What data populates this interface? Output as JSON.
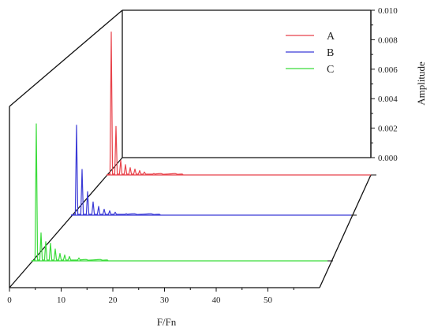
{
  "chart_data": {
    "type": "line",
    "variant": "3d-waterfall",
    "title": "",
    "xlabel": "F/Fn",
    "zlabel": "Amplitude",
    "xlim": [
      0,
      60
    ],
    "zlim": [
      0,
      0.01
    ],
    "x_ticks": [
      "0",
      "10",
      "20",
      "30",
      "40",
      "50"
    ],
    "z_ticks": [
      "0.000",
      "0.002",
      "0.004",
      "0.006",
      "0.008",
      "0.010"
    ],
    "grid": false,
    "legend_position": "top-right",
    "series": [
      {
        "name": "A",
        "color": "#e8424a",
        "peaks": [
          [
            1.0,
            0.0097
          ],
          [
            2.0,
            0.0033
          ],
          [
            3.0,
            0.001
          ],
          [
            4.0,
            0.0007
          ],
          [
            5.0,
            0.0005
          ],
          [
            6.0,
            0.0004
          ],
          [
            7.0,
            0.0003
          ],
          [
            8.0,
            0.0002
          ],
          [
            10.0,
            0.0001
          ]
        ]
      },
      {
        "name": "B",
        "color": "#3a3ad6",
        "peaks": [
          [
            1.0,
            0.0061
          ],
          [
            2.0,
            0.0031
          ],
          [
            3.0,
            0.0016
          ],
          [
            4.0,
            0.0009
          ],
          [
            5.0,
            0.0006
          ],
          [
            6.0,
            0.0004
          ],
          [
            7.0,
            0.0003
          ],
          [
            8.0,
            0.0002
          ],
          [
            10.0,
            0.0001
          ]
        ]
      },
      {
        "name": "C",
        "color": "#3bdc3b",
        "peaks": [
          [
            1.0,
            0.0093
          ],
          [
            2.0,
            0.0019
          ],
          [
            3.0,
            0.0013
          ],
          [
            4.0,
            0.0012
          ],
          [
            5.0,
            0.0008
          ],
          [
            6.0,
            0.0005
          ],
          [
            7.0,
            0.0004
          ],
          [
            8.0,
            0.0003
          ],
          [
            10.0,
            0.0002
          ]
        ]
      }
    ]
  }
}
